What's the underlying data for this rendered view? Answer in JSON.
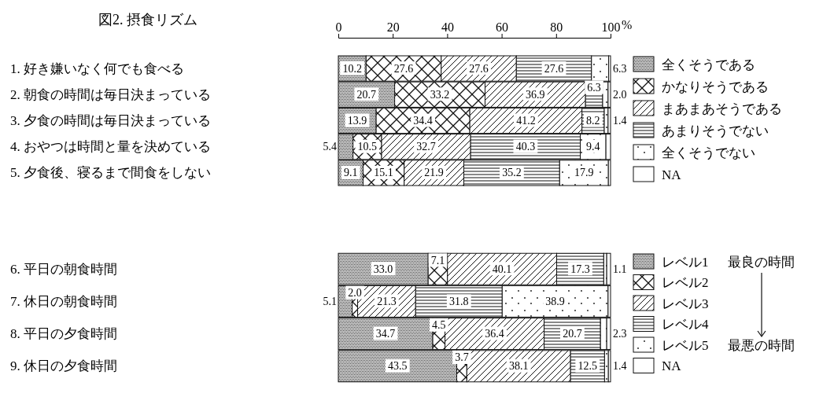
{
  "chart_data": [
    {
      "type": "bar",
      "orientation": "horizontal",
      "stacked": true,
      "title": "図2. 摂食リズム",
      "x2label": "%",
      "legend": "right",
      "xlim": [
        0,
        100
      ],
      "x2lim": [
        0,
        100
      ],
      "x2ticks": [
        0,
        20,
        40,
        60,
        80,
        100
      ],
      "categories": [
        "1. 好き嫌いなく何でも食べる",
        "2. 朝食の時間は毎日決まっている",
        "3. 夕食の時間は毎日決まっている",
        "4. おやつは時間と量を決めている",
        "5. 夕食後、寝るまで間食をしない"
      ],
      "series": [
        {
          "name": "全くそうである",
          "color": "#c8c8c8",
          "values": [
            10.2,
            20.7,
            13.9,
            5.4,
            9.1
          ],
          "value_labels": [
            "10.2",
            "20.7",
            "13.9",
            "5.4",
            "9.1"
          ]
        },
        {
          "name": "かなりそうである",
          "color": "#ffffff",
          "values": [
            27.6,
            33.2,
            34.4,
            10.5,
            15.1
          ],
          "value_labels": [
            "27.6",
            "33.2",
            "34.4",
            "10.5",
            "15.1"
          ]
        },
        {
          "name": "まあまあそうである",
          "color": "#ffffff",
          "values": [
            27.6,
            36.9,
            41.2,
            32.7,
            21.9
          ],
          "value_labels": [
            "27.6",
            "36.9",
            "41.2",
            "32.7",
            "21.9"
          ]
        },
        {
          "name": "あまりそうでない",
          "color": "#ffffff",
          "values": [
            27.6,
            6.3,
            8.2,
            40.3,
            35.2
          ],
          "value_labels": [
            "27.6",
            "6.3",
            "8.2",
            "40.3",
            "35.2"
          ]
        },
        {
          "name": "全くそうでない",
          "color": "#ffffff",
          "values": [
            6.3,
            2.0,
            1.4,
            9.4,
            17.9
          ],
          "value_labels": [
            "6.3",
            "2.0",
            "1.4",
            "9.4",
            "17.9"
          ]
        },
        {
          "name": "NA",
          "color": "#ffffff",
          "values": [
            0.7,
            0.9,
            0.9,
            1.7,
            0.8
          ],
          "value_labels": [
            null,
            null,
            null,
            null,
            null
          ]
        }
      ]
    },
    {
      "type": "bar",
      "orientation": "horizontal",
      "stacked": true,
      "legend": "right",
      "xlim": [
        0,
        100
      ],
      "tick_labels": "y",
      "annotations": [
        "最良の時間",
        "最悪の時間"
      ],
      "categories": [
        "6. 平日の朝食時間",
        "7. 休日の朝食時間",
        "8. 平日の夕食時間",
        "9. 休日の夕食時間"
      ],
      "series": [
        {
          "name": "レベル1",
          "color": "#c8c8c8",
          "values": [
            33.0,
            5.1,
            34.7,
            43.5
          ],
          "value_labels": [
            "33.0",
            "5.1",
            "34.7",
            "43.5"
          ]
        },
        {
          "name": "レベル2",
          "color": "#ffffff",
          "values": [
            7.1,
            2.0,
            4.5,
            3.7
          ],
          "value_labels": [
            "7.1",
            "2.0",
            "4.5",
            "3.7"
          ]
        },
        {
          "name": "レベル3",
          "color": "#ffffff",
          "values": [
            40.1,
            21.3,
            36.4,
            38.1
          ],
          "value_labels": [
            "40.1",
            "21.3",
            "36.4",
            "38.1"
          ]
        },
        {
          "name": "レベル4",
          "color": "#ffffff",
          "values": [
            17.3,
            31.8,
            20.7,
            12.5
          ],
          "value_labels": [
            "17.3",
            "31.8",
            "20.7",
            "12.5"
          ]
        },
        {
          "name": "レベル5",
          "color": "#ffffff",
          "values": [
            1.1,
            38.9,
            2.3,
            1.4
          ],
          "value_labels": [
            "1.1",
            "38.9",
            "2.3",
            "1.4"
          ]
        },
        {
          "name": "NA",
          "color": "#ffffff",
          "values": [
            1.4,
            0.9,
            1.4,
            0.8
          ],
          "value_labels": [
            null,
            null,
            null,
            null
          ]
        }
      ]
    }
  ]
}
